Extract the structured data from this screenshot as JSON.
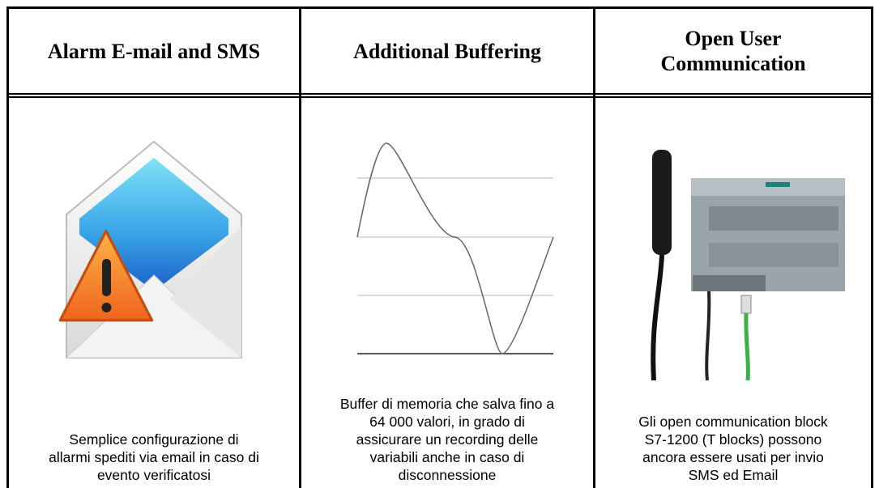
{
  "columns": [
    {
      "title": [
        "Alarm E-mail and SMS"
      ],
      "description": [
        "Semplice configurazione di",
        "allarmi spediti via email in caso di",
        "evento verificatosi"
      ]
    },
    {
      "title": [
        "Additional Buffering"
      ],
      "description": [
        "Buffer di memoria che salva fino a",
        "64 000 valori, in grado di",
        "assicurare un recording delle",
        "variabili anche in caso di",
        "disconnessione"
      ]
    },
    {
      "title": [
        "Open User",
        "Communication"
      ],
      "description": [
        "Gli open communication block",
        "S7-1200 (T blocks) possono",
        "ancora essere usati per invio",
        "SMS ed Email"
      ]
    }
  ]
}
